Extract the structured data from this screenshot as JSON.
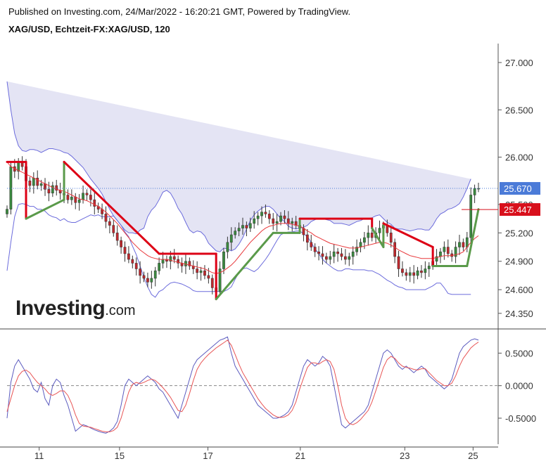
{
  "header": {
    "published": "Published on Investing.com, 24/Mar/2022 - 16:20:21 GMT, Powered by TradingView.",
    "symbol": "XAG/USD, Echtzeit-FX:XAG/USD, 120"
  },
  "logo": {
    "main": "Investing",
    "suffix": ".com"
  },
  "colors": {
    "up": "#3a8a3f",
    "down": "#c0282d",
    "band": "#6b6bdc",
    "bandFill": "#e4e4f4",
    "redLine": "#e8383b",
    "supertrendUp": "#5a9a4a",
    "supertrendDown": "#dd0015",
    "priceLabel": "#4b7bd8",
    "redLabel": "#d8101c",
    "stochK": "#5b5bbf",
    "stochD": "#e85555"
  },
  "chart_data": [
    {
      "type": "candlestick",
      "title": "XAG/USD, Echtzeit-FX:XAG/USD, 120",
      "x_labels": [
        "11",
        "15",
        "17",
        "21",
        "23",
        "25"
      ],
      "y_ticks": [
        "27.000",
        "26.500",
        "26.000",
        "25.500",
        "25.200",
        "24.900",
        "24.600",
        "24.350"
      ],
      "ylim": [
        24.2,
        27.2
      ],
      "last_price": {
        "value": "25.670",
        "label": "25.670"
      },
      "supertrend_value": {
        "value": "25.447",
        "label": "25.447"
      },
      "close": [
        25.45,
        25.9,
        25.85,
        25.95,
        25.9,
        25.75,
        25.7,
        25.78,
        25.7,
        25.72,
        25.66,
        25.62,
        25.7,
        25.65,
        25.62,
        25.6,
        25.55,
        25.58,
        25.52,
        25.55,
        25.62,
        25.6,
        25.55,
        25.48,
        25.45,
        25.4,
        25.32,
        25.28,
        25.2,
        25.12,
        25.05,
        24.98,
        24.92,
        24.88,
        24.82,
        24.75,
        24.72,
        24.68,
        24.72,
        24.8,
        24.88,
        24.92,
        24.9,
        24.95,
        24.92,
        24.88,
        24.85,
        24.9,
        24.85,
        24.82,
        24.78,
        24.8,
        24.75,
        24.72,
        24.62,
        24.58,
        24.82,
        25.0,
        25.1,
        25.18,
        25.22,
        25.25,
        25.28,
        25.25,
        25.3,
        25.35,
        25.38,
        25.42,
        25.4,
        25.35,
        25.3,
        25.32,
        25.38,
        25.35,
        25.3,
        25.32,
        25.28,
        25.25,
        25.18,
        25.1,
        25.05,
        25.0,
        24.98,
        24.95,
        24.92,
        24.95,
        25.0,
        24.98,
        24.95,
        24.92,
        24.95,
        25.0,
        25.05,
        25.1,
        25.15,
        25.2,
        25.15,
        25.2,
        25.25,
        25.28,
        25.2,
        25.1,
        24.95,
        24.82,
        24.78,
        24.75,
        24.78,
        24.75,
        24.8,
        24.78,
        24.82,
        24.85,
        24.9,
        24.95,
        25.0,
        25.05,
        24.98,
        24.95,
        25.05,
        25.1,
        25.05,
        25.15,
        25.6,
        25.67,
        25.67
      ],
      "bollinger": {
        "upper": [
          26.8,
          26.5,
          26.25,
          26.12,
          26.07,
          26.06,
          26.08,
          26.08,
          26.07,
          26.05,
          26.07,
          26.09,
          26.09,
          26.08,
          26.07,
          26.05,
          26.04,
          26.01,
          25.97,
          25.93,
          25.89,
          25.83,
          25.77,
          25.72,
          25.67,
          25.61,
          25.53,
          25.45,
          25.38,
          25.33,
          25.28,
          25.23,
          25.2,
          25.2,
          25.19,
          25.23,
          25.25,
          25.37,
          25.44,
          25.48,
          25.55,
          25.63,
          25.65,
          25.62,
          25.55,
          25.46,
          25.4,
          25.31,
          25.23,
          25.2,
          25.22,
          25.21,
          25.17,
          25.09,
          25.05,
          25.01,
          25.0,
          25.04,
          25.03,
          25.01,
          25.03,
          25.08,
          25.15,
          25.24,
          25.33,
          25.39,
          25.43,
          25.46,
          25.48,
          25.48,
          25.45,
          25.4,
          25.35,
          25.32,
          25.27,
          25.25,
          25.24,
          25.25,
          25.26,
          25.28,
          25.32,
          25.34,
          25.35,
          25.35,
          25.34,
          25.33,
          25.3,
          25.3,
          25.3,
          25.29,
          25.28,
          25.3,
          25.32,
          25.33,
          25.35,
          25.35,
          25.36,
          25.38,
          25.39,
          25.35,
          25.31,
          25.29,
          25.25,
          25.24,
          25.24,
          25.23,
          25.22,
          25.23,
          25.24,
          25.24,
          25.23,
          25.23,
          25.28,
          25.35,
          25.4,
          25.42,
          25.45,
          25.46,
          25.48,
          25.51,
          25.58,
          25.67,
          25.77
        ],
        "middle": [
          25.8,
          25.8,
          25.81,
          25.81,
          25.79,
          25.78,
          25.78,
          25.78,
          25.76,
          25.75,
          25.75,
          25.74,
          25.73,
          25.72,
          25.7,
          25.7,
          25.68,
          25.66,
          25.64,
          25.63,
          25.62,
          25.6,
          25.58,
          25.55,
          25.53,
          25.49,
          25.45,
          25.41,
          25.38,
          25.33,
          25.28,
          25.22,
          25.18,
          25.13,
          25.08,
          25.04,
          24.99,
          24.95,
          24.92,
          24.89,
          24.87,
          24.86,
          24.85,
          24.85,
          24.84,
          24.83,
          24.82,
          24.82,
          24.82,
          24.83,
          24.84,
          24.83,
          24.83,
          24.83,
          24.83,
          24.81,
          24.8,
          24.81,
          24.83,
          24.86,
          24.9,
          24.94,
          24.97,
          25.01,
          25.05,
          25.1,
          25.15,
          25.19,
          25.23,
          25.26,
          25.27,
          25.28,
          25.3,
          25.31,
          25.31,
          25.31,
          25.31,
          25.3,
          25.29,
          25.27,
          25.25,
          25.22,
          25.2,
          25.18,
          25.15,
          25.13,
          25.11,
          25.08,
          25.07,
          25.06,
          25.05,
          25.06,
          25.06,
          25.07,
          25.07,
          25.08,
          25.08,
          25.09,
          25.1,
          25.1,
          25.09,
          25.07,
          25.05,
          25.03,
          25.0,
          24.98,
          24.96,
          24.95,
          24.95,
          24.95,
          24.95,
          24.95,
          24.96,
          24.97,
          24.97,
          24.98,
          24.99,
          25.0,
          25.01,
          25.02,
          25.05,
          25.12,
          25.16
        ],
        "lower": [
          24.8,
          25.1,
          25.37,
          25.5,
          25.51,
          25.5,
          25.48,
          25.48,
          25.45,
          25.45,
          25.43,
          25.39,
          25.37,
          25.36,
          25.33,
          25.35,
          25.32,
          25.31,
          25.31,
          25.33,
          25.35,
          25.37,
          25.39,
          25.38,
          25.39,
          25.37,
          25.37,
          25.37,
          25.38,
          25.33,
          25.28,
          25.21,
          25.16,
          25.06,
          24.97,
          24.85,
          24.73,
          24.63,
          24.55,
          24.52,
          24.58,
          24.6,
          24.64,
          24.67,
          24.68,
          24.67,
          24.66,
          24.64,
          24.62,
          24.59,
          24.58,
          24.58,
          24.58,
          24.58,
          24.58,
          24.58,
          24.58,
          24.58,
          24.6,
          24.63,
          24.71,
          24.78,
          24.82,
          24.83,
          24.81,
          24.79,
          24.82,
          24.87,
          24.92,
          24.98,
          25.05,
          25.12,
          25.18,
          25.2,
          25.21,
          25.21,
          25.22,
          25.22,
          25.19,
          25.16,
          25.1,
          25.03,
          24.98,
          24.92,
          24.88,
          24.85,
          24.82,
          24.8,
          24.8,
          24.82,
          24.82,
          24.81,
          24.81,
          24.81,
          24.81,
          24.8,
          24.8,
          24.78,
          24.76,
          24.73,
          24.7,
          24.68,
          24.65,
          24.63,
          24.62,
          24.6,
          24.6,
          24.6,
          24.6,
          24.6,
          24.6,
          24.62,
          24.64,
          24.67,
          24.67,
          24.62,
          24.56,
          24.55,
          24.55,
          24.55,
          24.55,
          24.55,
          24.55
        ]
      },
      "red_line": [
        25.95,
        25.9,
        25.88,
        25.86,
        25.84,
        25.82,
        25.8,
        25.78,
        25.76,
        25.74,
        25.72,
        25.7,
        25.68,
        25.66,
        25.65,
        25.64,
        25.62,
        25.6,
        25.58,
        25.56,
        25.55,
        25.54,
        25.52,
        25.5,
        25.48,
        25.45,
        25.42,
        25.38,
        25.34,
        25.3,
        25.25,
        25.2,
        25.15,
        25.1,
        25.06,
        25.02,
        24.99,
        24.96,
        24.94,
        24.93,
        24.92,
        24.92,
        24.92,
        24.91,
        24.9,
        24.89,
        24.88,
        24.87,
        24.86,
        24.85,
        24.84,
        24.83,
        24.82,
        24.8,
        24.78,
        24.77,
        24.78,
        24.8,
        24.83,
        24.86,
        24.9,
        24.95,
        25.0,
        25.05,
        25.1,
        25.14,
        25.18,
        25.22,
        25.25,
        25.27,
        25.28,
        25.29,
        25.3,
        25.3,
        25.3,
        25.29,
        25.28,
        25.27,
        25.25,
        25.22,
        25.2,
        25.17,
        25.15,
        25.13,
        25.11,
        25.09,
        25.08,
        25.07,
        25.06,
        25.05,
        25.04,
        25.04,
        25.04,
        25.05,
        25.06,
        25.07,
        25.08,
        25.09,
        25.1,
        25.1,
        25.09,
        25.07,
        25.05,
        25.02,
        25.0,
        24.98,
        24.96,
        24.95,
        24.94,
        24.93,
        24.93,
        24.93,
        24.93,
        24.94,
        24.95,
        24.96,
        24.96,
        24.96,
        24.97,
        24.98,
        25.0,
        25.05,
        25.1,
        25.14,
        25.17
      ],
      "supertrend": [
        {
          "x": 0,
          "y": 25.95,
          "trend": "down"
        },
        {
          "x": 5,
          "y": 25.95,
          "trend": "down"
        },
        {
          "x": 5,
          "y": 25.35,
          "trend": "up"
        },
        {
          "x": 15,
          "y": 25.55,
          "trend": "up"
        },
        {
          "x": 15,
          "y": 25.95,
          "trend": "down"
        },
        {
          "x": 40,
          "y": 24.98,
          "trend": "down"
        },
        {
          "x": 55,
          "y": 24.98,
          "trend": "down"
        },
        {
          "x": 55,
          "y": 24.5,
          "trend": "up"
        },
        {
          "x": 70,
          "y": 25.2,
          "trend": "up"
        },
        {
          "x": 77,
          "y": 25.2,
          "trend": "up"
        },
        {
          "x": 77,
          "y": 25.35,
          "trend": "down"
        },
        {
          "x": 96,
          "y": 25.35,
          "trend": "down"
        },
        {
          "x": 96,
          "y": 25.25,
          "trend": "up"
        },
        {
          "x": 99,
          "y": 25.05,
          "trend": "up"
        },
        {
          "x": 99,
          "y": 25.3,
          "trend": "down"
        },
        {
          "x": 112,
          "y": 25.05,
          "trend": "down"
        },
        {
          "x": 112,
          "y": 24.85,
          "trend": "up"
        },
        {
          "x": 121,
          "y": 24.85,
          "trend": "up"
        },
        {
          "x": 124,
          "y": 25.45,
          "trend": "up"
        }
      ]
    },
    {
      "type": "line",
      "title": "",
      "y_ticks": [
        "0.5000",
        "0.0000",
        "-0.5000"
      ],
      "ylim": [
        -0.9,
        0.85
      ],
      "series": [
        {
          "values": [
            -0.5,
            0.05,
            0.3,
            0.4,
            0.3,
            0.2,
            0.1,
            -0.05,
            -0.1,
            0.05,
            -0.2,
            -0.3,
            0.0,
            0.1,
            0.05,
            -0.15,
            -0.3,
            -0.5,
            -0.7,
            -0.65,
            -0.6,
            -0.62,
            -0.65,
            -0.68,
            -0.7,
            -0.72,
            -0.73,
            -0.7,
            -0.65,
            -0.55,
            -0.3,
            0.0,
            0.1,
            0.05,
            0.0,
            0.05,
            0.1,
            0.15,
            0.1,
            0.05,
            -0.05,
            -0.1,
            -0.2,
            -0.3,
            -0.4,
            -0.5,
            -0.3,
            -0.1,
            0.1,
            0.3,
            0.4,
            0.45,
            0.5,
            0.55,
            0.6,
            0.65,
            0.7,
            0.72,
            0.75,
            0.5,
            0.3,
            0.2,
            0.1,
            0.0,
            -0.1,
            -0.2,
            -0.3,
            -0.35,
            -0.4,
            -0.45,
            -0.5,
            -0.5,
            -0.48,
            -0.45,
            -0.4,
            -0.3,
            -0.1,
            0.1,
            0.3,
            0.4,
            0.35,
            0.3,
            0.35,
            0.45,
            0.4,
            0.3,
            0.0,
            -0.3,
            -0.6,
            -0.65,
            -0.6,
            -0.55,
            -0.5,
            -0.45,
            -0.4,
            -0.3,
            -0.1,
            0.1,
            0.3,
            0.5,
            0.55,
            0.5,
            0.4,
            0.3,
            0.25,
            0.3,
            0.25,
            0.2,
            0.25,
            0.3,
            0.25,
            0.15,
            0.1,
            0.05,
            0.0,
            -0.05,
            0.0,
            0.1,
            0.3,
            0.5,
            0.6,
            0.65,
            0.7,
            0.72,
            0.7
          ]
        },
        {
          "values": [
            -0.4,
            -0.2,
            0.0,
            0.15,
            0.22,
            0.24,
            0.2,
            0.12,
            0.05,
            0.0,
            -0.05,
            -0.12,
            -0.15,
            -0.12,
            -0.08,
            -0.08,
            -0.15,
            -0.28,
            -0.45,
            -0.58,
            -0.62,
            -0.63,
            -0.64,
            -0.66,
            -0.68,
            -0.7,
            -0.71,
            -0.71,
            -0.69,
            -0.64,
            -0.5,
            -0.3,
            -0.1,
            0.02,
            0.05,
            0.03,
            0.05,
            0.08,
            0.1,
            0.08,
            0.03,
            -0.03,
            -0.1,
            -0.18,
            -0.28,
            -0.38,
            -0.4,
            -0.3,
            -0.12,
            0.08,
            0.25,
            0.35,
            0.42,
            0.48,
            0.53,
            0.58,
            0.62,
            0.66,
            0.7,
            0.62,
            0.48,
            0.33,
            0.2,
            0.1,
            0.0,
            -0.1,
            -0.2,
            -0.28,
            -0.35,
            -0.4,
            -0.45,
            -0.48,
            -0.49,
            -0.48,
            -0.45,
            -0.38,
            -0.25,
            -0.05,
            0.12,
            0.28,
            0.35,
            0.35,
            0.33,
            0.37,
            0.4,
            0.37,
            0.25,
            0.0,
            -0.3,
            -0.5,
            -0.58,
            -0.6,
            -0.57,
            -0.52,
            -0.45,
            -0.38,
            -0.25,
            -0.08,
            0.1,
            0.28,
            0.4,
            0.45,
            0.42,
            0.35,
            0.3,
            0.28,
            0.27,
            0.25,
            0.24,
            0.26,
            0.26,
            0.2,
            0.14,
            0.08,
            0.04,
            0.0,
            0.0,
            0.04,
            0.15,
            0.3,
            0.42,
            0.5,
            0.58,
            0.63,
            0.67
          ]
        }
      ]
    }
  ]
}
